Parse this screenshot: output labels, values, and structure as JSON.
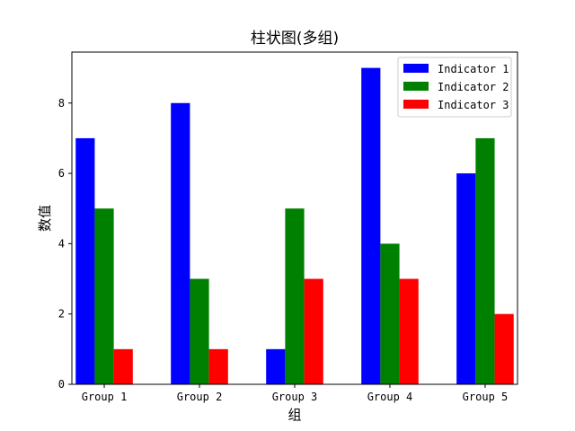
{
  "chart_data": {
    "type": "bar",
    "title": "柱状图(多组)",
    "xlabel": "组",
    "ylabel": "数值",
    "categories": [
      "Group 1",
      "Group 2",
      "Group 3",
      "Group 4",
      "Group 5"
    ],
    "series": [
      {
        "name": "Indicator 1",
        "color": "#0000ff",
        "values": [
          7,
          8,
          1,
          9,
          6
        ]
      },
      {
        "name": "Indicator 2",
        "color": "#008000",
        "values": [
          5,
          3,
          5,
          4,
          7
        ]
      },
      {
        "name": "Indicator 3",
        "color": "#ff0000",
        "values": [
          1,
          1,
          3,
          3,
          2
        ]
      }
    ],
    "ylim": [
      0,
      9.45
    ],
    "yticks": [
      0,
      2,
      4,
      6,
      8
    ],
    "grid": false,
    "legend_position": "top-right"
  }
}
